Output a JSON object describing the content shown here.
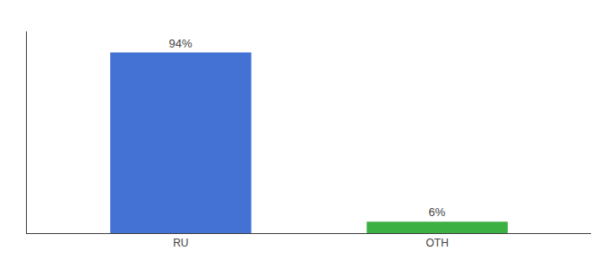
{
  "chart_data": {
    "type": "bar",
    "categories": [
      "RU",
      "OTH"
    ],
    "values": [
      94,
      6
    ],
    "value_labels": [
      "94%",
      "6%"
    ],
    "colors": [
      "#4472D4",
      "#3CB043"
    ],
    "data_labels": true,
    "ylim": [
      0,
      105
    ],
    "grid": false,
    "tick_labels": "x"
  }
}
